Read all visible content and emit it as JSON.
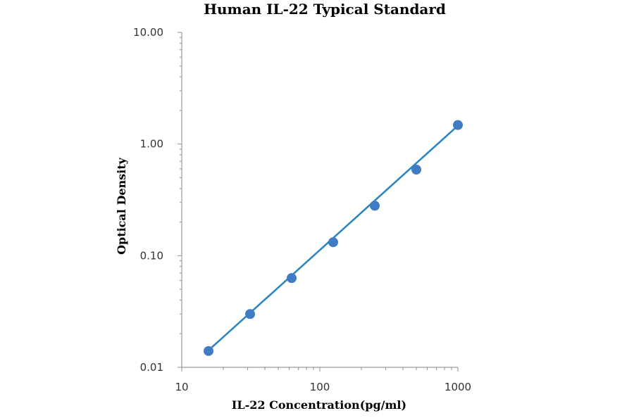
{
  "chart_data": {
    "type": "scatter",
    "title": "Human IL-22 Typical Standard",
    "xlabel": "IL-22 Concentration(pg/ml)",
    "ylabel": "Optical Density",
    "x_scale": "log",
    "y_scale": "log",
    "xlim": [
      10,
      1000
    ],
    "ylim": [
      0.01,
      10
    ],
    "x_ticks": [
      10,
      100,
      1000
    ],
    "x_tick_labels": [
      "10",
      "100",
      "1000"
    ],
    "y_ticks": [
      0.01,
      0.1,
      1,
      10
    ],
    "y_tick_labels": [
      "0.01",
      "0.10",
      "1.00",
      "10.00"
    ],
    "grid": false,
    "legend": "none",
    "series": [
      {
        "x": [
          15.63,
          31.25,
          62.5,
          125,
          250,
          500,
          1000
        ],
        "y": [
          0.014,
          0.03,
          0.063,
          0.132,
          0.28,
          0.59,
          1.48
        ],
        "color": "#3f7cc4"
      }
    ],
    "trendline": {
      "type": "power",
      "color": "#2e86c1",
      "x_range": [
        15.63,
        1000
      ],
      "y_range": [
        0.0142,
        1.46
      ]
    }
  }
}
